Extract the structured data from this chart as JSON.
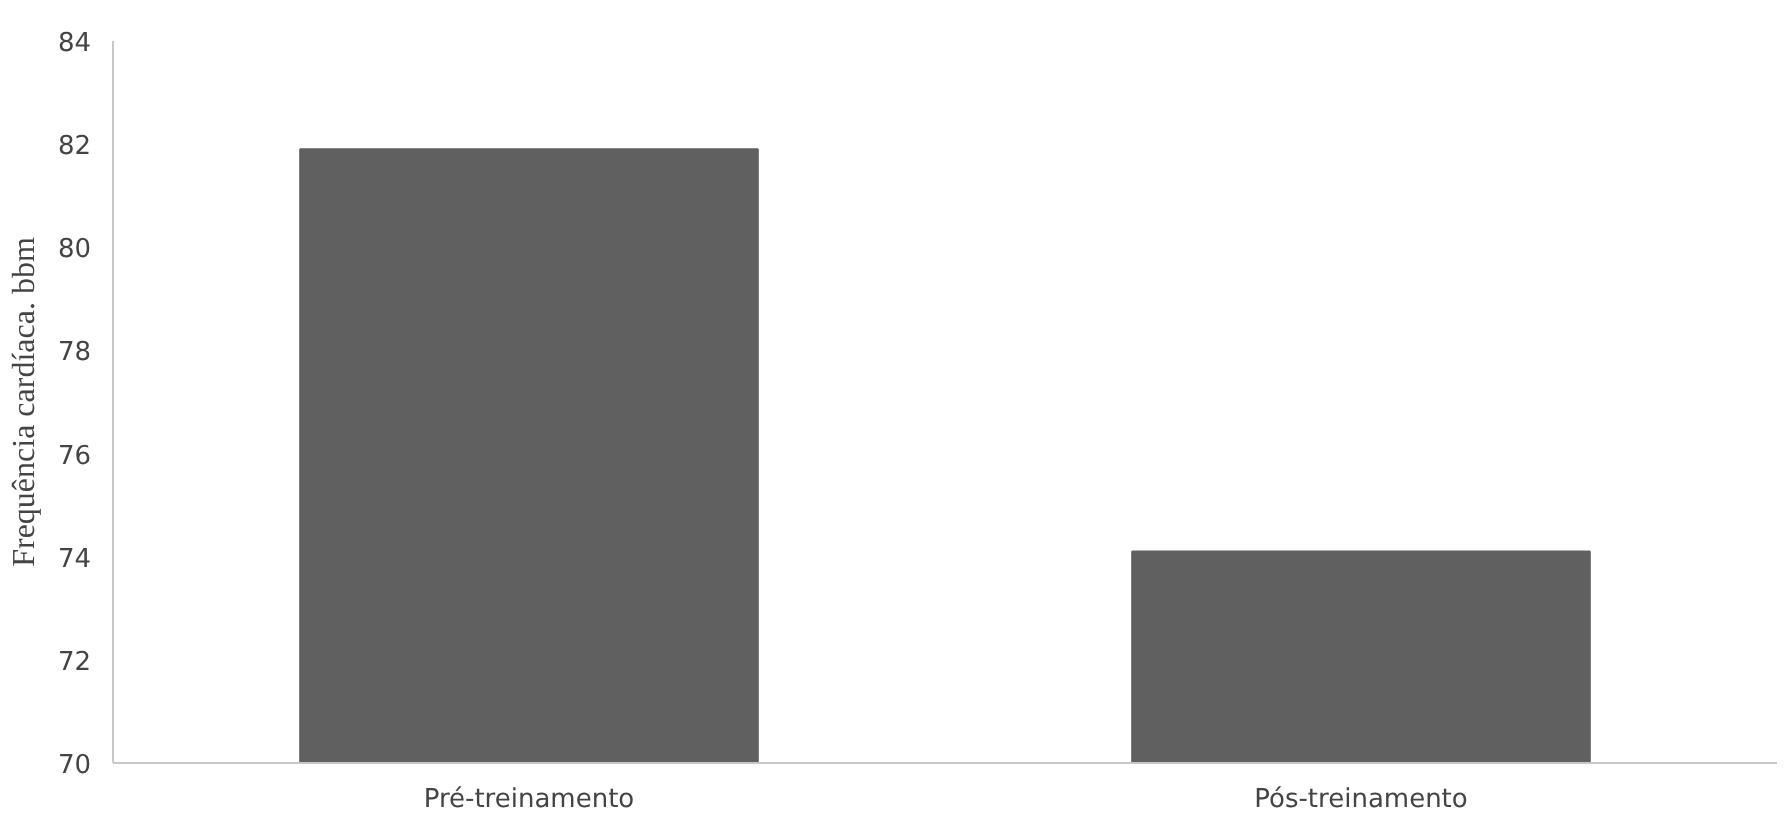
{
  "chart_data": {
    "type": "bar",
    "ylabel": "Frequência cardíaca. bbm",
    "categories": [
      "Pré-treinamento",
      "Pós-treinamento"
    ],
    "values": [
      81.9,
      74.1
    ],
    "color": "#606060",
    "ylim": [
      70,
      84
    ],
    "yticks": [
      70,
      72,
      74,
      76,
      78,
      80,
      82,
      84
    ],
    "grid": false
  }
}
